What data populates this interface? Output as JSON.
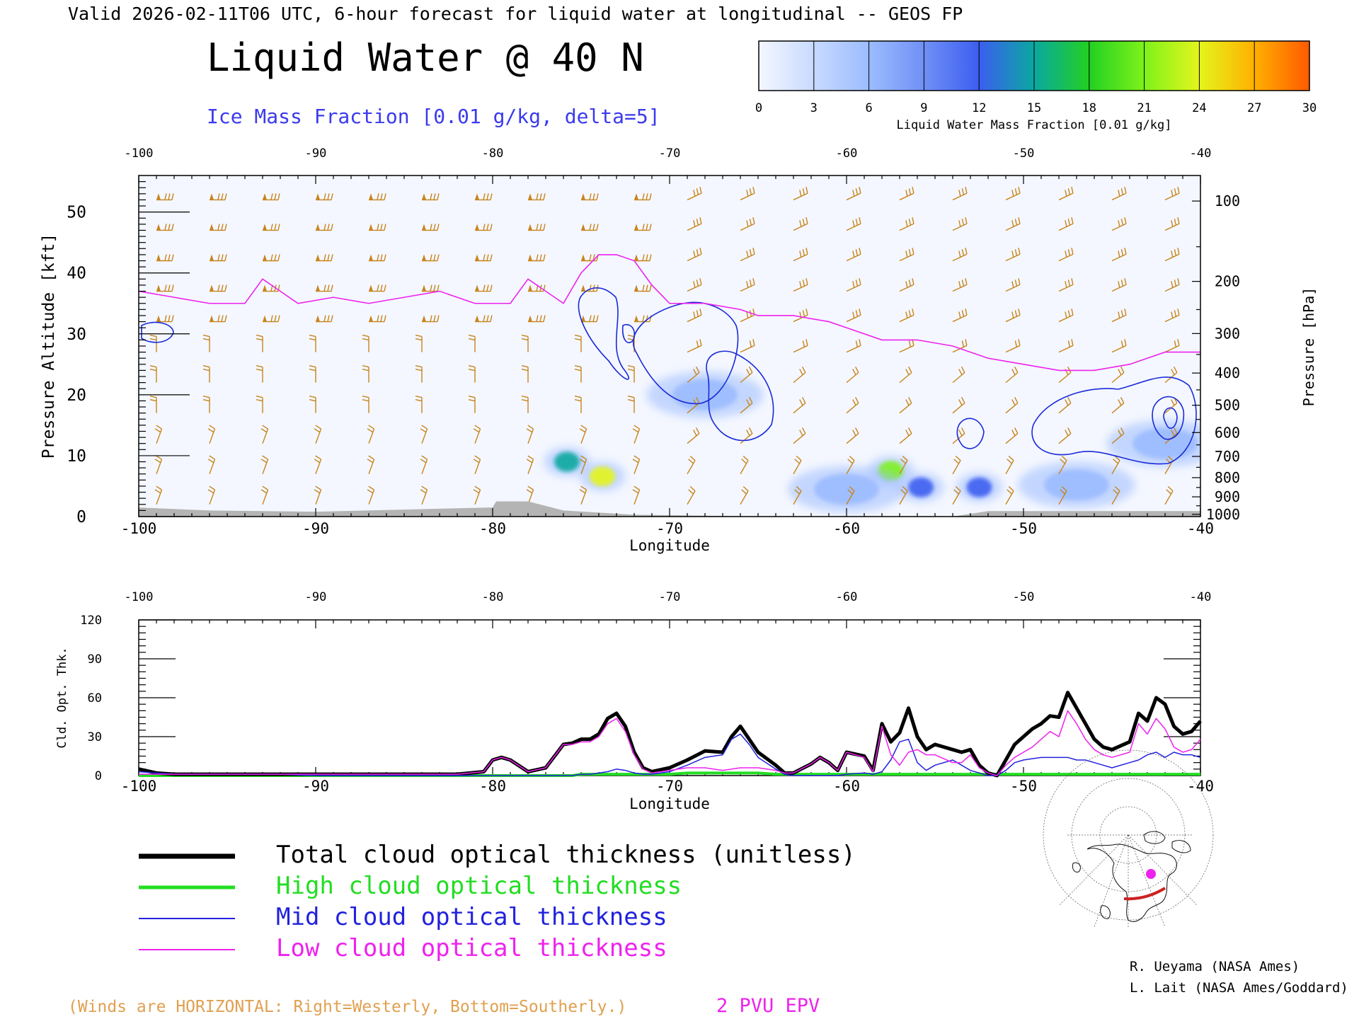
{
  "header": {
    "valid_line": "Valid 2026-02-11T06 UTC, 6-hour forecast for liquid water at longitudinal -- GEOS FP",
    "main_title": "Liquid Water @ 40 N",
    "contour_label": "Ice Mass Fraction [0.01 g/kg, delta=5]"
  },
  "colorbar": {
    "ticks": [
      "0",
      "3",
      "6",
      "9",
      "12",
      "15",
      "18",
      "21",
      "24",
      "27",
      "30"
    ],
    "label": "Liquid Water Mass Fraction [0.01 g/kg]",
    "colors": [
      "#f4f7ff",
      "#c8daff",
      "#9cbcff",
      "#7090f5",
      "#3c5ef0",
      "#0aa8a0",
      "#22d022",
      "#7ef21a",
      "#e4f51c",
      "#ffb000",
      "#ff5a00"
    ]
  },
  "top_panel": {
    "x_ticks": [
      "-100",
      "-90",
      "-80",
      "-70",
      "-60",
      "-50",
      "-40"
    ],
    "x_label": "Longitude",
    "left_ticks": [
      "0",
      "10",
      "20",
      "30",
      "40",
      "50"
    ],
    "left_label": "Pressure Altitude [kft]",
    "right_ticks": [
      "100",
      "200",
      "300",
      "400",
      "500",
      "600",
      "700",
      "800",
      "900",
      "1000"
    ],
    "right_label": "Pressure [hPa]"
  },
  "bottom_panel": {
    "x_ticks": [
      "-100",
      "-90",
      "-80",
      "-70",
      "-60",
      "-50",
      "-40"
    ],
    "x_label": "Longitude",
    "y_ticks": [
      "0",
      "30",
      "60",
      "90",
      "120"
    ],
    "y_label": "Cld. Opt. Thk."
  },
  "legend": [
    {
      "label": "Total cloud optical thickness (unitless)",
      "color": "#000000"
    },
    {
      "label": "High cloud optical thickness",
      "color": "#22dd22"
    },
    {
      "label": "Mid cloud optical thickness",
      "color": "#2222dd"
    },
    {
      "label": "Low cloud optical thickness",
      "color": "#ee22ee"
    }
  ],
  "footer": {
    "winds_note": "(Winds are HORIZONTAL: Right=Westerly, Bottom=Southerly.)",
    "pv_label": "2 PVU EPV",
    "credit1": "R. Ueyama (NASA Ames)",
    "credit2": "L. Lait (NASA Ames/Goddard)"
  },
  "colors": {
    "barb": "#c8841c",
    "tropopause": "#ee22ee",
    "ice_contour": "#1a2ad8",
    "contour_label": "#3a3aee",
    "winds_note": "#e0a050",
    "terrain": "#b4b4b4"
  },
  "chart_data": [
    {
      "type": "heatmap",
      "title": "Liquid Water @ 40 N",
      "xlabel": "Longitude",
      "ylabel": "Pressure Altitude [kft]",
      "xlim": [
        -100,
        -40
      ],
      "ylim": [
        0,
        56
      ],
      "zlabel": "Liquid Water Mass Fraction [0.01 g/kg]",
      "zlim": [
        0,
        30
      ],
      "cells": [
        {
          "x": -75.8,
          "y": 9.0,
          "value": 16
        },
        {
          "x": -73.8,
          "y": 6.6,
          "value": 24
        },
        {
          "x": -57.5,
          "y": 7.5,
          "value": 20
        },
        {
          "x": -55.8,
          "y": 4.8,
          "value": 13
        },
        {
          "x": -52.5,
          "y": 4.8,
          "value": 11
        },
        {
          "x": -60.0,
          "y": 4.5,
          "value": 7
        },
        {
          "x": -47.0,
          "y": 5.2,
          "value": 6
        },
        {
          "x": -68.0,
          "y": 20.0,
          "value": 5
        },
        {
          "x": -42.0,
          "y": 12.0,
          "value": 7
        }
      ],
      "tropopause_2pvu": {
        "label": "2 PVU EPV",
        "x": [
          -100,
          -98,
          -96,
          -94,
          -93,
          -91,
          -89,
          -87,
          -85,
          -83,
          -81,
          -79,
          -78,
          -76,
          -75,
          -74,
          -73,
          -72,
          -71,
          -70,
          -68,
          -66,
          -65,
          -63,
          -61,
          -60,
          -58,
          -56,
          -54,
          -52,
          -50,
          -48,
          -46,
          -44,
          -42,
          -40
        ],
        "y": [
          37,
          36,
          35,
          35,
          39,
          35,
          36,
          35,
          36,
          37,
          35,
          35,
          39,
          35,
          40,
          43,
          43,
          42,
          38,
          35,
          35,
          34,
          33,
          33,
          32,
          31,
          29,
          29,
          28,
          26,
          25,
          24,
          24,
          25,
          27,
          27
        ]
      },
      "winds_note": "(Winds are HORIZONTAL: Right=Westerly, Bottom=Southerly.)",
      "contour_label": "Ice Mass Fraction [0.01 g/kg, delta=5]"
    },
    {
      "type": "line",
      "xlabel": "Longitude",
      "ylabel": "Cld. Opt. Thk.",
      "xlim": [
        -100,
        -40
      ],
      "ylim": [
        0,
        120
      ],
      "x": [
        -100,
        -99,
        -98,
        -96,
        -94,
        -92,
        -90,
        -88,
        -86,
        -84,
        -82,
        -80.5,
        -80,
        -79.5,
        -79,
        -78,
        -77,
        -76,
        -75.5,
        -75,
        -74.5,
        -74,
        -73.5,
        -73,
        -72.5,
        -72,
        -71.5,
        -71,
        -70,
        -69,
        -68,
        -67,
        -66.5,
        -66,
        -65.5,
        -65,
        -64,
        -63.5,
        -63,
        -62,
        -61.5,
        -61,
        -60.5,
        -60,
        -59,
        -58.5,
        -58,
        -57.5,
        -57,
        -56.5,
        -56,
        -55.5,
        -55,
        -54,
        -53.5,
        -53,
        -52.5,
        -52,
        -51.5,
        -51,
        -50.5,
        -50,
        -49.5,
        -49,
        -48.5,
        -48,
        -47.5,
        -47,
        -46.5,
        -46,
        -45.5,
        -45,
        -44,
        -43.5,
        -43,
        -42.5,
        -42,
        -41.5,
        -41,
        -40.5,
        -40
      ],
      "series": [
        {
          "name": "Total cloud optical thickness (unitless)",
          "values": [
            5,
            2,
            1,
            1,
            1,
            1,
            1,
            1,
            1,
            1,
            1,
            3,
            12,
            14,
            12,
            3,
            6,
            24,
            25,
            28,
            28,
            32,
            44,
            48,
            38,
            18,
            6,
            3,
            6,
            12,
            19,
            18,
            30,
            38,
            28,
            18,
            8,
            2,
            2,
            9,
            14,
            10,
            4,
            18,
            15,
            4,
            40,
            26,
            33,
            52,
            30,
            20,
            24,
            20,
            18,
            20,
            8,
            2,
            0,
            12,
            24,
            30,
            36,
            40,
            46,
            45,
            64,
            52,
            40,
            28,
            22,
            20,
            26,
            48,
            42,
            60,
            55,
            38,
            32,
            34,
            42
          ]
        },
        {
          "name": "High cloud optical thickness",
          "values": [
            0,
            0,
            0,
            0,
            0,
            0,
            0,
            0,
            0,
            0,
            0,
            0,
            0,
            0,
            0,
            0,
            0,
            0,
            0,
            1,
            1,
            1,
            1,
            1,
            1,
            1,
            1,
            1,
            1,
            2,
            2,
            2,
            2,
            2,
            2,
            2,
            1,
            1,
            1,
            1,
            1,
            1,
            1,
            1,
            1,
            1,
            1,
            1,
            1,
            1,
            1,
            1,
            1,
            1,
            1,
            1,
            1,
            1,
            1,
            1,
            1,
            1,
            1,
            1,
            1,
            1,
            1,
            1,
            1,
            1,
            1,
            1,
            1,
            1,
            1,
            1,
            1,
            1,
            1,
            1,
            1
          ]
        },
        {
          "name": "Mid cloud optical thickness",
          "values": [
            3,
            2,
            1,
            1,
            1,
            1,
            0,
            0,
            0,
            0,
            0,
            0,
            0,
            0,
            0,
            0,
            0,
            0,
            0,
            1,
            1,
            2,
            3,
            5,
            4,
            2,
            1,
            1,
            3,
            8,
            14,
            16,
            28,
            32,
            24,
            14,
            5,
            1,
            0,
            0,
            0,
            0,
            0,
            1,
            2,
            1,
            3,
            12,
            26,
            28,
            10,
            4,
            8,
            12,
            8,
            4,
            2,
            0,
            0,
            4,
            10,
            12,
            13,
            14,
            14,
            14,
            14,
            12,
            12,
            10,
            8,
            6,
            10,
            12,
            16,
            18,
            14,
            18,
            16,
            16,
            14
          ]
        },
        {
          "name": "Low cloud optical thickness",
          "values": [
            1,
            1,
            1,
            1,
            1,
            1,
            1,
            1,
            1,
            1,
            1,
            3,
            12,
            14,
            12,
            3,
            6,
            24,
            24,
            26,
            26,
            30,
            40,
            44,
            34,
            16,
            5,
            2,
            4,
            6,
            6,
            4,
            5,
            6,
            6,
            6,
            4,
            2,
            2,
            9,
            14,
            10,
            4,
            18,
            14,
            3,
            38,
            16,
            8,
            18,
            20,
            16,
            16,
            10,
            10,
            16,
            6,
            2,
            0,
            8,
            14,
            18,
            22,
            28,
            34,
            30,
            50,
            40,
            28,
            20,
            16,
            14,
            18,
            40,
            32,
            44,
            36,
            22,
            18,
            20,
            28
          ]
        }
      ]
    }
  ]
}
